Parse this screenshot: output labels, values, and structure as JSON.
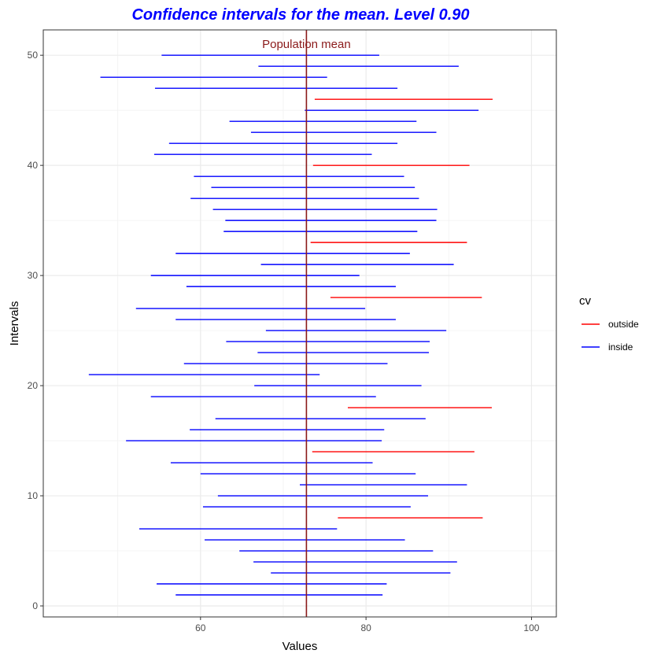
{
  "chart_data": {
    "type": "interval",
    "title": "Confidence intervals for the mean. Level  0.90",
    "xlabel": "Values",
    "ylabel": "Intervals",
    "xlim": [
      41.0,
      103.0
    ],
    "ylim": [
      -1.0,
      52.3
    ],
    "x_ticks": [
      60,
      80,
      100
    ],
    "x_tick_labels": [
      "60",
      "80",
      "100"
    ],
    "y_ticks": [
      0,
      10,
      20,
      30,
      40,
      50
    ],
    "y_tick_labels": [
      "0",
      "10",
      "20",
      "30",
      "40",
      "50"
    ],
    "grid": true,
    "population_mean": 72.8,
    "population_mean_label": "Population mean",
    "population_mean_color": "#8b1a1a",
    "legend": {
      "title": "cv",
      "position": "right",
      "entries": [
        {
          "label": "outside",
          "color": "#ff0000"
        },
        {
          "label": "inside",
          "color": "#0000ff"
        }
      ]
    },
    "colors": {
      "inside": "#0000ff",
      "outside": "#ff0000",
      "title": "#0000ff"
    },
    "intervals": [
      {
        "id": 1,
        "lower": 57.0,
        "upper": 82.0,
        "cv": "inside"
      },
      {
        "id": 2,
        "lower": 54.7,
        "upper": 82.5,
        "cv": "inside"
      },
      {
        "id": 3,
        "lower": 68.5,
        "upper": 90.2,
        "cv": "inside"
      },
      {
        "id": 4,
        "lower": 66.4,
        "upper": 91.0,
        "cv": "inside"
      },
      {
        "id": 5,
        "lower": 64.7,
        "upper": 88.1,
        "cv": "inside"
      },
      {
        "id": 6,
        "lower": 60.5,
        "upper": 84.7,
        "cv": "inside"
      },
      {
        "id": 7,
        "lower": 52.6,
        "upper": 76.5,
        "cv": "inside"
      },
      {
        "id": 8,
        "lower": 76.6,
        "upper": 94.1,
        "cv": "outside"
      },
      {
        "id": 9,
        "lower": 60.3,
        "upper": 85.4,
        "cv": "inside"
      },
      {
        "id": 10,
        "lower": 62.1,
        "upper": 87.5,
        "cv": "inside"
      },
      {
        "id": 11,
        "lower": 72.0,
        "upper": 92.2,
        "cv": "inside"
      },
      {
        "id": 12,
        "lower": 60.0,
        "upper": 86.0,
        "cv": "inside"
      },
      {
        "id": 13,
        "lower": 56.4,
        "upper": 80.8,
        "cv": "inside"
      },
      {
        "id": 14,
        "lower": 73.5,
        "upper": 93.1,
        "cv": "outside"
      },
      {
        "id": 15,
        "lower": 51.0,
        "upper": 81.9,
        "cv": "inside"
      },
      {
        "id": 16,
        "lower": 58.7,
        "upper": 82.2,
        "cv": "inside"
      },
      {
        "id": 17,
        "lower": 61.8,
        "upper": 87.2,
        "cv": "inside"
      },
      {
        "id": 18,
        "lower": 77.8,
        "upper": 95.2,
        "cv": "outside"
      },
      {
        "id": 19,
        "lower": 54.0,
        "upper": 81.2,
        "cv": "inside"
      },
      {
        "id": 20,
        "lower": 66.5,
        "upper": 86.7,
        "cv": "inside"
      },
      {
        "id": 21,
        "lower": 46.5,
        "upper": 74.4,
        "cv": "inside"
      },
      {
        "id": 22,
        "lower": 58.0,
        "upper": 82.6,
        "cv": "inside"
      },
      {
        "id": 23,
        "lower": 66.9,
        "upper": 87.6,
        "cv": "inside"
      },
      {
        "id": 24,
        "lower": 63.1,
        "upper": 87.7,
        "cv": "inside"
      },
      {
        "id": 25,
        "lower": 67.9,
        "upper": 89.7,
        "cv": "inside"
      },
      {
        "id": 26,
        "lower": 57.0,
        "upper": 83.6,
        "cv": "inside"
      },
      {
        "id": 27,
        "lower": 52.2,
        "upper": 79.9,
        "cv": "inside"
      },
      {
        "id": 28,
        "lower": 75.7,
        "upper": 94.0,
        "cv": "outside"
      },
      {
        "id": 29,
        "lower": 58.3,
        "upper": 83.6,
        "cv": "inside"
      },
      {
        "id": 30,
        "lower": 54.0,
        "upper": 79.2,
        "cv": "inside"
      },
      {
        "id": 31,
        "lower": 67.3,
        "upper": 90.6,
        "cv": "inside"
      },
      {
        "id": 32,
        "lower": 57.0,
        "upper": 85.3,
        "cv": "inside"
      },
      {
        "id": 33,
        "lower": 73.3,
        "upper": 92.2,
        "cv": "outside"
      },
      {
        "id": 34,
        "lower": 62.8,
        "upper": 86.2,
        "cv": "inside"
      },
      {
        "id": 35,
        "lower": 63.0,
        "upper": 88.5,
        "cv": "inside"
      },
      {
        "id": 36,
        "lower": 61.5,
        "upper": 88.6,
        "cv": "inside"
      },
      {
        "id": 37,
        "lower": 58.8,
        "upper": 86.4,
        "cv": "inside"
      },
      {
        "id": 38,
        "lower": 61.3,
        "upper": 85.9,
        "cv": "inside"
      },
      {
        "id": 39,
        "lower": 59.2,
        "upper": 84.6,
        "cv": "inside"
      },
      {
        "id": 40,
        "lower": 73.6,
        "upper": 92.5,
        "cv": "outside"
      },
      {
        "id": 41,
        "lower": 54.4,
        "upper": 80.7,
        "cv": "inside"
      },
      {
        "id": 42,
        "lower": 56.2,
        "upper": 83.8,
        "cv": "inside"
      },
      {
        "id": 43,
        "lower": 66.1,
        "upper": 88.5,
        "cv": "inside"
      },
      {
        "id": 44,
        "lower": 63.5,
        "upper": 86.1,
        "cv": "inside"
      },
      {
        "id": 45,
        "lower": 72.6,
        "upper": 93.6,
        "cv": "inside"
      },
      {
        "id": 46,
        "lower": 73.8,
        "upper": 95.3,
        "cv": "outside"
      },
      {
        "id": 47,
        "lower": 54.5,
        "upper": 83.8,
        "cv": "inside"
      },
      {
        "id": 48,
        "lower": 47.9,
        "upper": 75.3,
        "cv": "inside"
      },
      {
        "id": 49,
        "lower": 67.0,
        "upper": 91.2,
        "cv": "inside"
      },
      {
        "id": 50,
        "lower": 55.3,
        "upper": 81.6,
        "cv": "inside"
      }
    ]
  }
}
